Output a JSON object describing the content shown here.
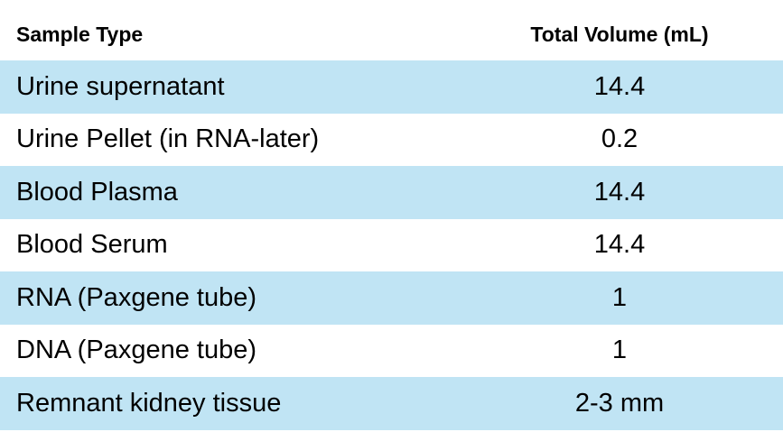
{
  "table": {
    "headers": {
      "sample_type": "Sample Type",
      "total_volume": "Total Volume (mL)"
    },
    "rows": [
      {
        "sample_type": "Urine supernatant",
        "total_volume": "14.4"
      },
      {
        "sample_type": "Urine Pellet (in RNA-later)",
        "total_volume": "0.2"
      },
      {
        "sample_type": "Blood Plasma",
        "total_volume": "14.4"
      },
      {
        "sample_type": "Blood Serum",
        "total_volume": "14.4"
      },
      {
        "sample_type": "RNA (Paxgene tube)",
        "total_volume": "1"
      },
      {
        "sample_type": "DNA (Paxgene tube)",
        "total_volume": "1"
      },
      {
        "sample_type": "Remnant kidney tissue",
        "total_volume": "2-3 mm"
      }
    ],
    "colors": {
      "shaded_row": "#c0e4f4",
      "plain_row": "#ffffff",
      "text": "#000000"
    }
  }
}
